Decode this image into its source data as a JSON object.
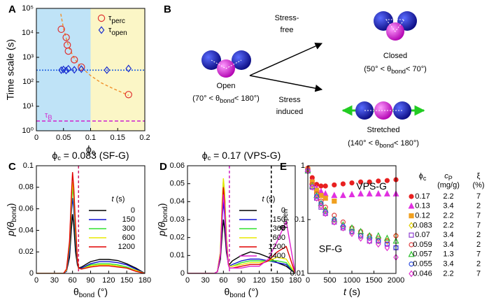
{
  "chart_data": [
    {
      "type": "scatter",
      "panel": "A",
      "xlim": [
        0,
        0.2
      ],
      "xticks": [
        0,
        0.05,
        0.1,
        0.15,
        0.2
      ],
      "ylim": [
        1,
        100000
      ],
      "ylog": true,
      "yticks": [
        {
          "value": 1,
          "label": "10⁰"
        },
        {
          "value": 10,
          "label": "10¹"
        },
        {
          "value": 100,
          "label": "10²"
        },
        {
          "value": 1000,
          "label": "10³"
        },
        {
          "value": 10000,
          "label": "10⁴"
        },
        {
          "value": 100000,
          "label": "10⁵"
        }
      ],
      "x_label": {
        "pre": "ϕ",
        "sub": "c"
      },
      "y_label": "Time scale (s)",
      "regions": [
        {
          "xlim": [
            0,
            0.1
          ],
          "color": "#bfe3f7"
        },
        {
          "xlim": [
            0.1,
            0.2
          ],
          "color": "#fbf6c6"
        }
      ],
      "series": [
        {
          "name": {
            "pre": "τ",
            "sub": "perc"
          },
          "color": "#e03030",
          "marker": "circle2",
          "x": [
            0.046,
            0.055,
            0.057,
            0.059,
            0.07,
            0.083,
            0.17
          ],
          "values": [
            14000,
            6500,
            3200,
            1800,
            800,
            400,
            30
          ]
        },
        {
          "name": {
            "pre": "τ",
            "sub": "open"
          },
          "color": "#1a2fd0",
          "marker": "diamond",
          "x": [
            0.046,
            0.05,
            0.055,
            0.059,
            0.07,
            0.083,
            0.13,
            0.17
          ],
          "values": [
            300,
            320,
            290,
            340,
            310,
            330,
            300,
            350
          ]
        },
        {
          "type": "line",
          "color": "#f0902a",
          "dash": true,
          "x": [
            0.045,
            0.05,
            0.06,
            0.07,
            0.08,
            0.1,
            0.12,
            0.14,
            0.17
          ],
          "values": [
            60000,
            15000,
            2500,
            900,
            450,
            180,
            90,
            55,
            28
          ]
        }
      ],
      "hlines": [
        {
          "value": 300,
          "color": "#2060e0"
        },
        {
          "value": 2.5,
          "color": "#d030d0",
          "label": {
            "pre": "τ",
            "sub": "B"
          }
        }
      ]
    },
    {
      "type": "line",
      "panel": "C",
      "title": {
        "pre": "ϕ",
        "sub": "c",
        "post": " = 0.083 (SF-G)"
      },
      "xlim": [
        0,
        180
      ],
      "xticks": [
        0,
        30,
        60,
        90,
        120,
        150,
        180
      ],
      "ylim": [
        0,
        0.1
      ],
      "yticks": [
        0,
        0.02,
        0.04,
        0.06,
        0.08,
        0.1
      ],
      "x_label": {
        "pre": "θ",
        "sub": "bond",
        "post": " (°)"
      },
      "y_label": {
        "pre": "p(θ",
        "sub": "bond",
        "post": ")"
      },
      "legend_title": {
        "pre": "t",
        "post": " (s)"
      },
      "x": [
        0,
        30,
        45,
        50,
        55,
        58,
        60,
        62,
        65,
        68,
        70,
        75,
        90,
        105,
        120,
        135,
        150,
        165,
        180
      ],
      "series": [
        {
          "name": "0",
          "color": "#000000",
          "values": [
            0,
            0,
            0,
            0.002,
            0.015,
            0.04,
            0.055,
            0.045,
            0.02,
            0.008,
            0.005,
            0.006,
            0.011,
            0.013,
            0.013,
            0.012,
            0.009,
            0.005,
            0
          ]
        },
        {
          "name": "150",
          "color": "#1010d0",
          "values": [
            0,
            0,
            0,
            0.002,
            0.02,
            0.055,
            0.07,
            0.06,
            0.03,
            0.01,
            0.005,
            0.005,
            0.009,
            0.011,
            0.011,
            0.01,
            0.008,
            0.004,
            0
          ]
        },
        {
          "name": "300",
          "color": "#30e030",
          "values": [
            0,
            0,
            0,
            0.003,
            0.025,
            0.06,
            0.08,
            0.07,
            0.035,
            0.012,
            0.005,
            0.004,
            0.008,
            0.009,
            0.009,
            0.008,
            0.006,
            0.003,
            0
          ]
        },
        {
          "name": "600",
          "color": "#e8e800",
          "values": [
            0,
            0,
            0,
            0.003,
            0.028,
            0.065,
            0.085,
            0.075,
            0.04,
            0.012,
            0.005,
            0.004,
            0.007,
            0.008,
            0.008,
            0.007,
            0.005,
            0.003,
            0
          ]
        },
        {
          "name": "1200",
          "color": "#e00000",
          "values": [
            0,
            0,
            0,
            0.004,
            0.03,
            0.07,
            0.094,
            0.08,
            0.045,
            0.013,
            0.005,
            0.004,
            0.006,
            0.007,
            0.007,
            0.006,
            0.005,
            0.002,
            0
          ]
        }
      ],
      "vlines": [
        {
          "value": 70,
          "color": "#d0206a"
        }
      ]
    },
    {
      "type": "line",
      "panel": "D",
      "title": {
        "pre": "ϕ",
        "sub": "c",
        "post": " = 0.17 (VPS-G)"
      },
      "xlim": [
        0,
        180
      ],
      "xticks": [
        0,
        30,
        60,
        90,
        120,
        150,
        180
      ],
      "ylim": [
        0,
        0.06
      ],
      "yticks": [
        0,
        0.01,
        0.02,
        0.03,
        0.04,
        0.05,
        0.06
      ],
      "x_label": {
        "pre": "θ",
        "sub": "bond",
        "post": " (°)"
      },
      "y_label": {
        "pre": "p(θ",
        "sub": "bond",
        "post": ")"
      },
      "legend_title": {
        "pre": "t",
        "post": " (s)"
      },
      "x": [
        0,
        30,
        45,
        50,
        55,
        58,
        60,
        62,
        65,
        68,
        70,
        75,
        90,
        105,
        120,
        135,
        150,
        165,
        180
      ],
      "series": [
        {
          "name": "0",
          "color": "#000000",
          "values": [
            0,
            0,
            0,
            0.001,
            0.008,
            0.022,
            0.03,
            0.025,
            0.012,
            0.006,
            0.005,
            0.007,
            0.01,
            0.012,
            0.011,
            0.009,
            0.006,
            0.004,
            0
          ]
        },
        {
          "name": "150",
          "color": "#1010d0",
          "values": [
            0,
            0,
            0,
            0.001,
            0.01,
            0.03,
            0.04,
            0.033,
            0.015,
            0.006,
            0.004,
            0.005,
            0.007,
            0.008,
            0.008,
            0.007,
            0.006,
            0.005,
            0
          ]
        },
        {
          "name": "300",
          "color": "#30e030",
          "values": [
            0,
            0,
            0,
            0.001,
            0.012,
            0.038,
            0.052,
            0.045,
            0.02,
            0.006,
            0.004,
            0.004,
            0.006,
            0.007,
            0.007,
            0.007,
            0.007,
            0.006,
            0
          ]
        },
        {
          "name": "600",
          "color": "#e8e800",
          "values": [
            0,
            0,
            0,
            0.001,
            0.012,
            0.04,
            0.053,
            0.046,
            0.02,
            0.006,
            0.004,
            0.004,
            0.005,
            0.006,
            0.006,
            0.007,
            0.009,
            0.008,
            0
          ]
        },
        {
          "name": "1200",
          "color": "#e00000",
          "values": [
            0,
            0,
            0,
            0.001,
            0.011,
            0.036,
            0.048,
            0.04,
            0.018,
            0.006,
            0.003,
            0.003,
            0.004,
            0.005,
            0.005,
            0.007,
            0.012,
            0.015,
            0
          ]
        },
        {
          "name": "2400",
          "color": "#e020d0",
          "values": [
            0,
            0,
            0,
            0.001,
            0.01,
            0.032,
            0.044,
            0.037,
            0.016,
            0.005,
            0.003,
            0.003,
            0.003,
            0.004,
            0.004,
            0.008,
            0.018,
            0.029,
            0
          ]
        }
      ],
      "vlines": [
        {
          "value": 70,
          "color": "#d020c0"
        },
        {
          "value": 140,
          "color": "#000000"
        }
      ]
    },
    {
      "type": "scatter",
      "panel": "E",
      "xlim": [
        0,
        2000
      ],
      "xticks": [
        0,
        500,
        1000,
        1500,
        2000
      ],
      "ylim": [
        0.01,
        1
      ],
      "ylog": true,
      "yticks": [
        0.01,
        0.1,
        1
      ],
      "x_label": {
        "pre": "t",
        "post": " (s)"
      },
      "y_label": {
        "pre": "ϕ",
        "sub": "open"
      },
      "annotations": [
        "VPS-G",
        "SF-G"
      ],
      "legend_header": [
        {
          "pre": "ϕ",
          "sub": "c"
        },
        {
          "pre": "c",
          "sub": "P",
          "unit": "(mg/g)"
        },
        {
          "pre": "ξ",
          "unit": "(%)"
        }
      ],
      "x": [
        0,
        100,
        200,
        300,
        400,
        600,
        800,
        1000,
        1200,
        1400,
        1600,
        1800,
        2000
      ],
      "series": [
        {
          "name": "0.17",
          "cp": 2.2,
          "xi": 7,
          "color": "#e82020",
          "marker": "circle",
          "filled": true,
          "values": [
            0.9,
            0.6,
            0.45,
            0.42,
            0.42,
            0.44,
            0.46,
            0.48,
            0.5,
            0.5,
            0.52,
            0.53,
            0.55
          ]
        },
        {
          "name": "0.13",
          "cp": 3.4,
          "xi": 2,
          "color": "#e030e0",
          "marker": "triangle",
          "filled": true,
          "values": [
            0.85,
            0.5,
            0.38,
            0.33,
            0.3,
            0.28,
            0.28,
            0.29,
            0.3,
            0.3,
            0.3,
            0.3,
            0.3
          ]
        },
        {
          "name": "0.12",
          "cp": 2.2,
          "xi": 7,
          "color": "#f0a020",
          "marker": "square",
          "filled": true,
          "values": [
            0.85,
            0.5,
            0.35,
            0.28,
            0.25,
            0.22,
            null,
            null,
            null,
            null,
            null,
            null,
            null
          ]
        },
        {
          "name": "0.083",
          "cp": 2.2,
          "xi": 7,
          "color": "#e0d000",
          "marker": "diamond",
          "filled": false,
          "values": [
            0.8,
            0.45,
            0.3,
            0.2,
            0.15,
            0.1,
            0.07,
            0.06,
            0.05,
            0.05,
            0.04,
            0.04,
            0.05
          ]
        },
        {
          "name": "0.07",
          "cp": 3.4,
          "xi": 2,
          "color": "#9040d0",
          "marker": "square",
          "filled": false,
          "values": [
            0.8,
            0.4,
            0.25,
            0.17,
            0.13,
            0.09,
            0.07,
            0.06,
            0.05,
            0.04,
            0.04,
            0.035,
            0.03
          ]
        },
        {
          "name": "0.059",
          "cp": 3.4,
          "xi": 2,
          "color": "#e04040",
          "marker": "circle",
          "filled": false,
          "values": [
            0.85,
            0.45,
            0.3,
            0.22,
            0.17,
            0.12,
            0.09,
            0.07,
            0.06,
            0.05,
            0.045,
            0.04,
            0.05
          ]
        },
        {
          "name": "0.057",
          "cp": 1.3,
          "xi": 7,
          "color": "#30c030",
          "marker": "triangle",
          "filled": false,
          "values": [
            0.8,
            0.42,
            0.28,
            0.2,
            0.15,
            0.1,
            0.08,
            0.07,
            0.06,
            0.05,
            0.05,
            0.045,
            0.04
          ]
        },
        {
          "name": "0.055",
          "cp": 3.4,
          "xi": 2,
          "color": "#3050e0",
          "marker": "circle",
          "filled": false,
          "values": [
            0.8,
            0.4,
            0.27,
            0.2,
            0.14,
            0.1,
            0.075,
            0.06,
            0.05,
            0.045,
            0.04,
            0.035,
            0.03
          ]
        },
        {
          "name": "0.046",
          "cp": 2.2,
          "xi": 7,
          "color": "#e030d0",
          "marker": "diamond",
          "filled": false,
          "values": [
            0.8,
            0.4,
            0.25,
            0.18,
            0.13,
            0.09,
            0.07,
            0.055,
            0.045,
            0.04,
            0.035,
            0.03,
            0.02
          ]
        }
      ]
    }
  ],
  "diagram": {
    "panel": "B",
    "open": {
      "label": "Open",
      "range": {
        "pre": "(70° < θ",
        "sub": "bond",
        "post": "< 180°)"
      }
    },
    "stress_free": [
      "Stress-",
      "free"
    ],
    "stress_induced": [
      "Stress",
      "induced"
    ],
    "closed": {
      "label": "Closed",
      "range": {
        "pre": "(50° < θ",
        "sub": "bond",
        "post": "< 70°)"
      }
    },
    "stretched": {
      "label": "Stretched",
      "range": {
        "pre": "(140° < θ",
        "sub": "bond",
        "post": "< 180°)"
      }
    }
  }
}
